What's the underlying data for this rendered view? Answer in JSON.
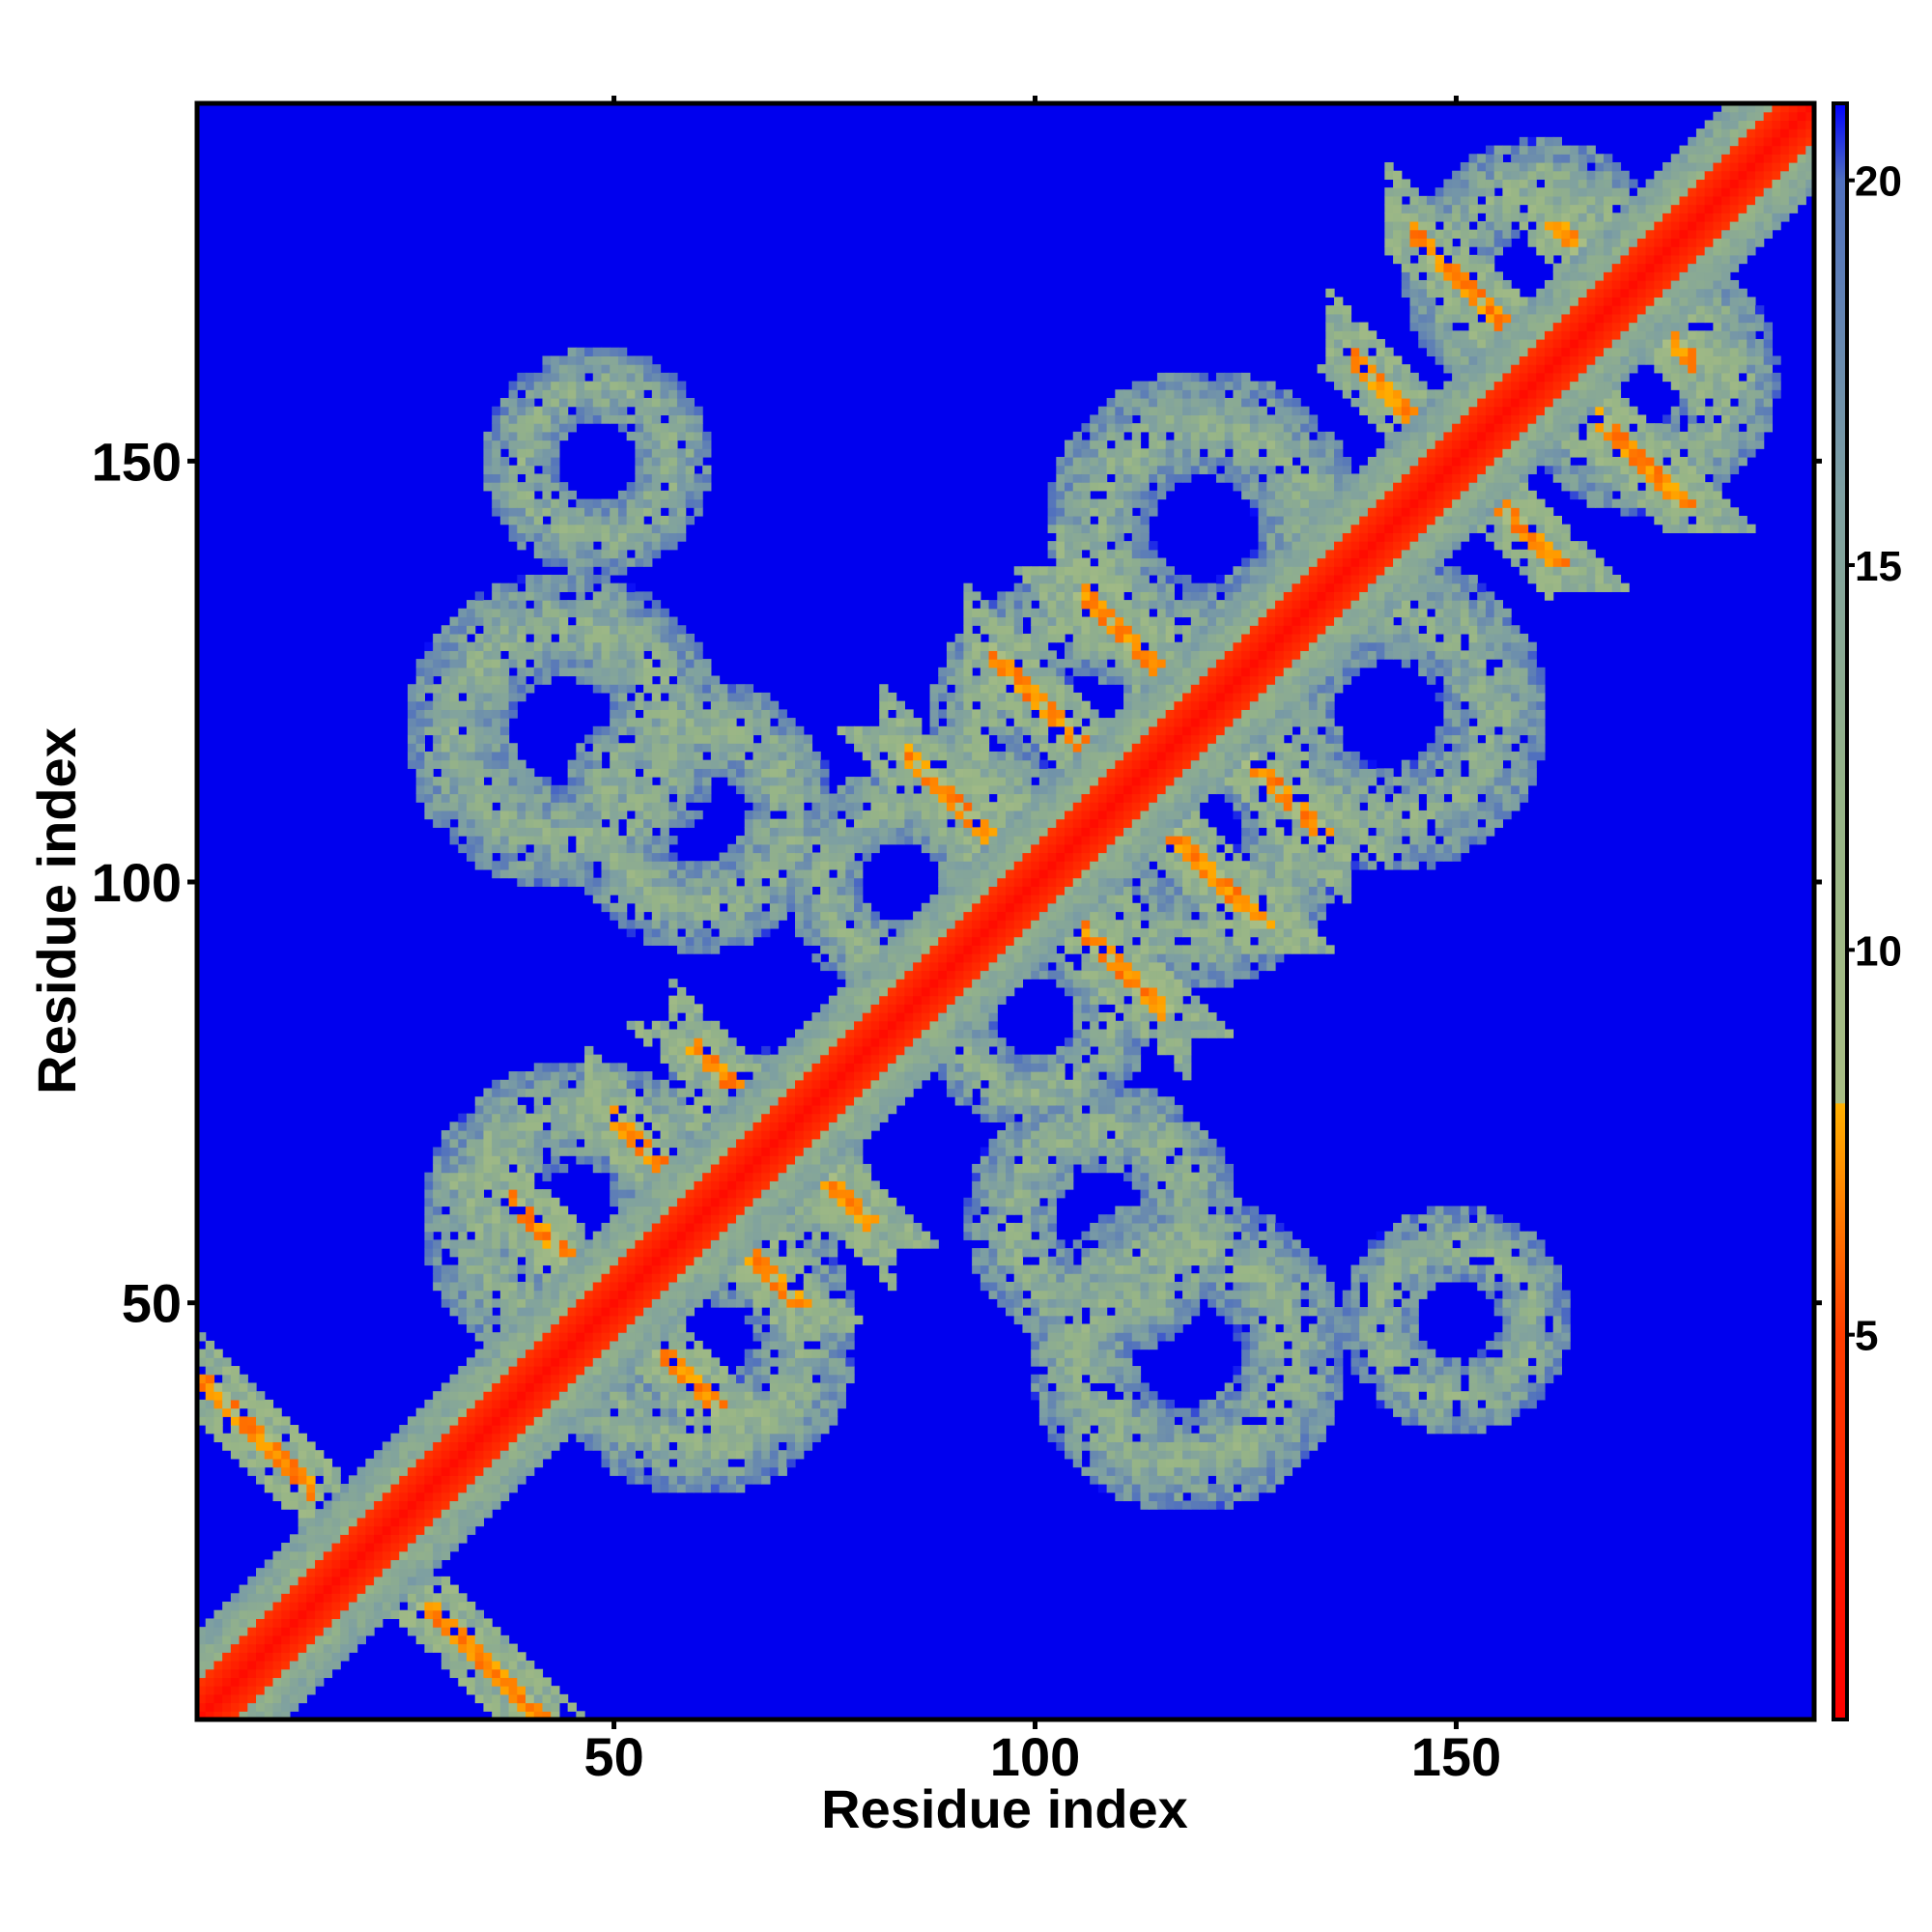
{
  "chart_data": {
    "type": "heatmap",
    "title": "",
    "xlabel": "Residue index",
    "ylabel": "Residue index",
    "xlim": [
      1,
      192
    ],
    "ylim": [
      1,
      192
    ],
    "x_ticks": [
      50,
      100,
      150
    ],
    "y_ticks": [
      50,
      100,
      150
    ],
    "x_tick_labels": [
      "50",
      "100",
      "150"
    ],
    "y_tick_labels": [
      "50",
      "100",
      "150"
    ],
    "grid": false,
    "legend": "none",
    "colorbar": {
      "range": [
        0,
        21
      ],
      "ticks": [
        5,
        10,
        15,
        20
      ],
      "tick_labels": [
        "5",
        "10",
        "15",
        "20"
      ],
      "stops": [
        {
          "value": 0,
          "color": "#ff0000"
        },
        {
          "value": 5,
          "color": "#ff3d00"
        },
        {
          "value": 7,
          "color": "#ff8c00"
        },
        {
          "value": 8,
          "color": "#ffb000"
        },
        {
          "value": 8.01,
          "color": "#a9be84"
        },
        {
          "value": 12,
          "color": "#96b487"
        },
        {
          "value": 16,
          "color": "#7d9fa2"
        },
        {
          "value": 20,
          "color": "#4f6fbf"
        },
        {
          "value": 21,
          "color": "#0000ff"
        }
      ]
    },
    "colors": {
      "background": "#0000ee",
      "near": "#ff0000",
      "contact": "#ff8c00",
      "mid": "#9cbb86",
      "far": "#6f8fb0"
    },
    "structure": {
      "diagonal_band_width": 4,
      "contact_lanes": [
        {
          "center_sum": 42,
          "range": [
            1,
            14
          ],
          "type": "antiparallel"
        },
        {
          "center_sum": 100,
          "range": [
            38,
            62
          ],
          "type": "antiparallel"
        },
        {
          "center_sum": 122,
          "range": [
            50,
            70
          ],
          "type": "antiparallel"
        },
        {
          "center_sum": 140,
          "range": [
            60,
            80
          ],
          "type": "antiparallel"
        },
        {
          "center_sum": 200,
          "range": [
            85,
            115
          ],
          "type": "antiparallel"
        },
        {
          "center_sum": 222,
          "range": [
            95,
            120
          ],
          "type": "antiparallel"
        },
        {
          "center_sum": 240,
          "range": [
            106,
            134
          ],
          "type": "antiparallel"
        },
        {
          "center_sum": 300,
          "range": [
            138,
            158
          ],
          "type": "antiparallel"
        },
        {
          "center_sum": 322,
          "range": [
            145,
            168
          ],
          "type": "antiparallel"
        },
        {
          "center_sum": 340,
          "range": [
            163,
            178
          ],
          "type": "antiparallel"
        }
      ],
      "domains": [
        {
          "x_center": 44,
          "y_center": 118,
          "radius": 14
        },
        {
          "x_center": 60,
          "y_center": 108,
          "radius": 12
        },
        {
          "x_center": 84,
          "y_center": 100,
          "radius": 10
        },
        {
          "x_center": 106,
          "y_center": 118,
          "radius": 14
        },
        {
          "x_center": 120,
          "y_center": 142,
          "radius": 14
        },
        {
          "x_center": 142,
          "y_center": 106,
          "radius": 12
        },
        {
          "x_center": 100,
          "y_center": 52,
          "radius": 14
        },
        {
          "x_center": 122,
          "y_center": 58,
          "radius": 12
        },
        {
          "x_center": 142,
          "y_center": 44,
          "radius": 10
        },
        {
          "x_center": 46,
          "y_center": 60,
          "radius": 14
        },
        {
          "x_center": 66,
          "y_center": 64,
          "radius": 12
        },
        {
          "x_center": 160,
          "y_center": 172,
          "radius": 12
        },
        {
          "x_center": 170,
          "y_center": 140,
          "radius": 10
        },
        {
          "x_center": 48,
          "y_center": 150,
          "radius": 10
        }
      ]
    }
  }
}
